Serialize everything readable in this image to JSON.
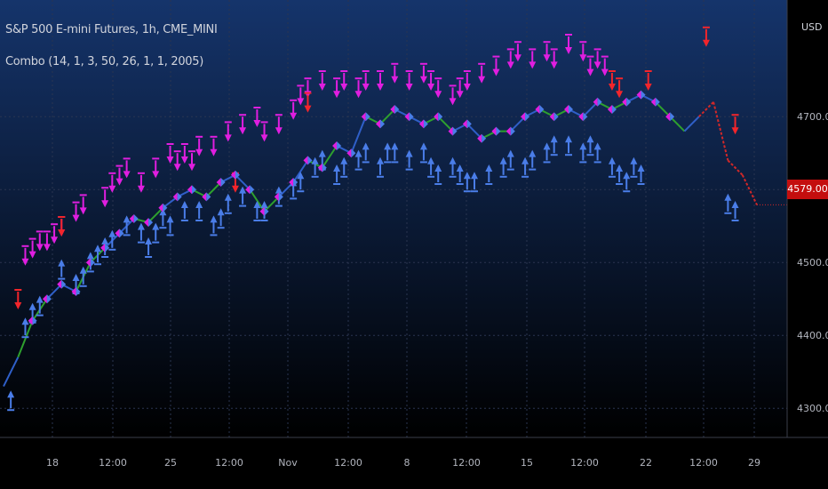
{
  "header": {
    "title": "S&P 500 E-mini Futures, 1h, CME_MINI",
    "indicator": "Combo (14, 1, 3, 50, 26, 1, 1, 2005)"
  },
  "price_axis": {
    "currency": "USD",
    "last_price": "4579.00"
  },
  "colors": {
    "background_top": "#15346b",
    "background_bottom": "#000000",
    "axis_bg": "#000000",
    "up_arrow": "#4a7de8",
    "down_arrow_magenta": "#e01ee0",
    "down_arrow_red": "#f2252b",
    "line_blue": "#2f5fc8",
    "line_green": "#2ea02e",
    "line_red": "#d22828",
    "last_price_bg": "#c40e0e"
  },
  "chart_data": {
    "type": "line",
    "title": "S&P 500 E-mini Futures, 1h, CME_MINI",
    "xlabel": "",
    "ylabel": "",
    "ylim": [
      4260,
      4860
    ],
    "y_ticks": [
      "4300.00",
      "4400.00",
      "4500.00",
      "4600.00",
      "4700.00"
    ],
    "x_ticks": [
      "18",
      "12:00",
      "25",
      "12:00",
      "Nov",
      "12:00",
      "8",
      "12:00",
      "15",
      "12:00",
      "22",
      "12:00",
      "29"
    ],
    "grid": true,
    "legend": "top-left",
    "series": [
      {
        "x": [
          0,
          4,
          8,
          12,
          16,
          20,
          24,
          28,
          32,
          36,
          40,
          44,
          48,
          52,
          56,
          60,
          64,
          68,
          72,
          76,
          80,
          84,
          88,
          92,
          96,
          100,
          104,
          108,
          112,
          116,
          120,
          124,
          128,
          132,
          136,
          140,
          144,
          148,
          152,
          156,
          160,
          164,
          168,
          172,
          176,
          180,
          184,
          188,
          192,
          196,
          200,
          204,
          208
        ],
        "values": [
          4330,
          4370,
          4420,
          4450,
          4470,
          4460,
          4500,
          4520,
          4540,
          4560,
          4555,
          4575,
          4590,
          4600,
          4590,
          4610,
          4620,
          4600,
          4570,
          4590,
          4610,
          4640,
          4630,
          4660,
          4650,
          4700,
          4690,
          4710,
          4700,
          4690,
          4700,
          4680,
          4690,
          4670,
          4680,
          4680,
          4700,
          4710,
          4700,
          4710,
          4700,
          4720,
          4710,
          4720,
          4730,
          4720,
          4700,
          4680,
          4700,
          4720,
          4640,
          4620,
          4579
        ]
      }
    ],
    "signals": {
      "up_arrows": [
        [
          2,
          4300
        ],
        [
          6,
          4400
        ],
        [
          8,
          4420
        ],
        [
          10,
          4430
        ],
        [
          16,
          4480
        ],
        [
          20,
          4460
        ],
        [
          22,
          4470
        ],
        [
          24,
          4490
        ],
        [
          26,
          4500
        ],
        [
          28,
          4510
        ],
        [
          30,
          4520
        ],
        [
          34,
          4540
        ],
        [
          38,
          4530
        ],
        [
          40,
          4510
        ],
        [
          42,
          4530
        ],
        [
          44,
          4550
        ],
        [
          46,
          4540
        ],
        [
          50,
          4560
        ],
        [
          54,
          4560
        ],
        [
          58,
          4540
        ],
        [
          60,
          4550
        ],
        [
          62,
          4570
        ],
        [
          66,
          4580
        ],
        [
          70,
          4560
        ],
        [
          72,
          4560
        ],
        [
          76,
          4580
        ],
        [
          80,
          4590
        ],
        [
          82,
          4600
        ],
        [
          86,
          4620
        ],
        [
          88,
          4630
        ],
        [
          92,
          4610
        ],
        [
          94,
          4620
        ],
        [
          98,
          4630
        ],
        [
          100,
          4640
        ],
        [
          104,
          4620
        ],
        [
          106,
          4640
        ],
        [
          108,
          4640
        ],
        [
          112,
          4630
        ],
        [
          116,
          4640
        ],
        [
          118,
          4620
        ],
        [
          120,
          4610
        ],
        [
          124,
          4620
        ],
        [
          126,
          4610
        ],
        [
          128,
          4600
        ],
        [
          130,
          4600
        ],
        [
          134,
          4610
        ],
        [
          138,
          4620
        ],
        [
          140,
          4630
        ],
        [
          144,
          4620
        ],
        [
          146,
          4630
        ],
        [
          150,
          4640
        ],
        [
          152,
          4650
        ],
        [
          156,
          4650
        ],
        [
          160,
          4640
        ],
        [
          162,
          4650
        ],
        [
          164,
          4640
        ],
        [
          168,
          4620
        ],
        [
          170,
          4610
        ],
        [
          172,
          4600
        ],
        [
          174,
          4620
        ],
        [
          176,
          4610
        ],
        [
          200,
          4570
        ],
        [
          202,
          4560
        ]
      ],
      "down_arrows_magenta": [
        [
          6,
          4520
        ],
        [
          8,
          4530
        ],
        [
          10,
          4540
        ],
        [
          12,
          4540
        ],
        [
          14,
          4550
        ],
        [
          16,
          4560
        ],
        [
          20,
          4580
        ],
        [
          22,
          4590
        ],
        [
          28,
          4600
        ],
        [
          30,
          4620
        ],
        [
          32,
          4630
        ],
        [
          34,
          4640
        ],
        [
          38,
          4620
        ],
        [
          42,
          4640
        ],
        [
          46,
          4660
        ],
        [
          48,
          4650
        ],
        [
          50,
          4660
        ],
        [
          52,
          4650
        ],
        [
          54,
          4670
        ],
        [
          58,
          4670
        ],
        [
          62,
          4690
        ],
        [
          66,
          4700
        ],
        [
          70,
          4710
        ],
        [
          72,
          4690
        ],
        [
          76,
          4700
        ],
        [
          80,
          4720
        ],
        [
          82,
          4740
        ],
        [
          84,
          4750
        ],
        [
          88,
          4760
        ],
        [
          92,
          4750
        ],
        [
          94,
          4760
        ],
        [
          98,
          4750
        ],
        [
          100,
          4760
        ],
        [
          104,
          4760
        ],
        [
          108,
          4770
        ],
        [
          112,
          4760
        ],
        [
          116,
          4770
        ],
        [
          118,
          4760
        ],
        [
          120,
          4750
        ],
        [
          124,
          4740
        ],
        [
          126,
          4750
        ],
        [
          128,
          4760
        ],
        [
          132,
          4770
        ],
        [
          136,
          4780
        ],
        [
          140,
          4790
        ],
        [
          142,
          4800
        ],
        [
          146,
          4790
        ],
        [
          150,
          4800
        ],
        [
          152,
          4790
        ],
        [
          156,
          4810
        ],
        [
          160,
          4800
        ],
        [
          162,
          4780
        ],
        [
          164,
          4790
        ],
        [
          166,
          4780
        ]
      ],
      "down_arrows_red": [
        [
          4,
          4460
        ],
        [
          16,
          4560
        ],
        [
          64,
          4620
        ],
        [
          84,
          4730
        ],
        [
          168,
          4760
        ],
        [
          170,
          4750
        ],
        [
          178,
          4760
        ],
        [
          194,
          4820
        ],
        [
          202,
          4700
        ]
      ]
    }
  }
}
